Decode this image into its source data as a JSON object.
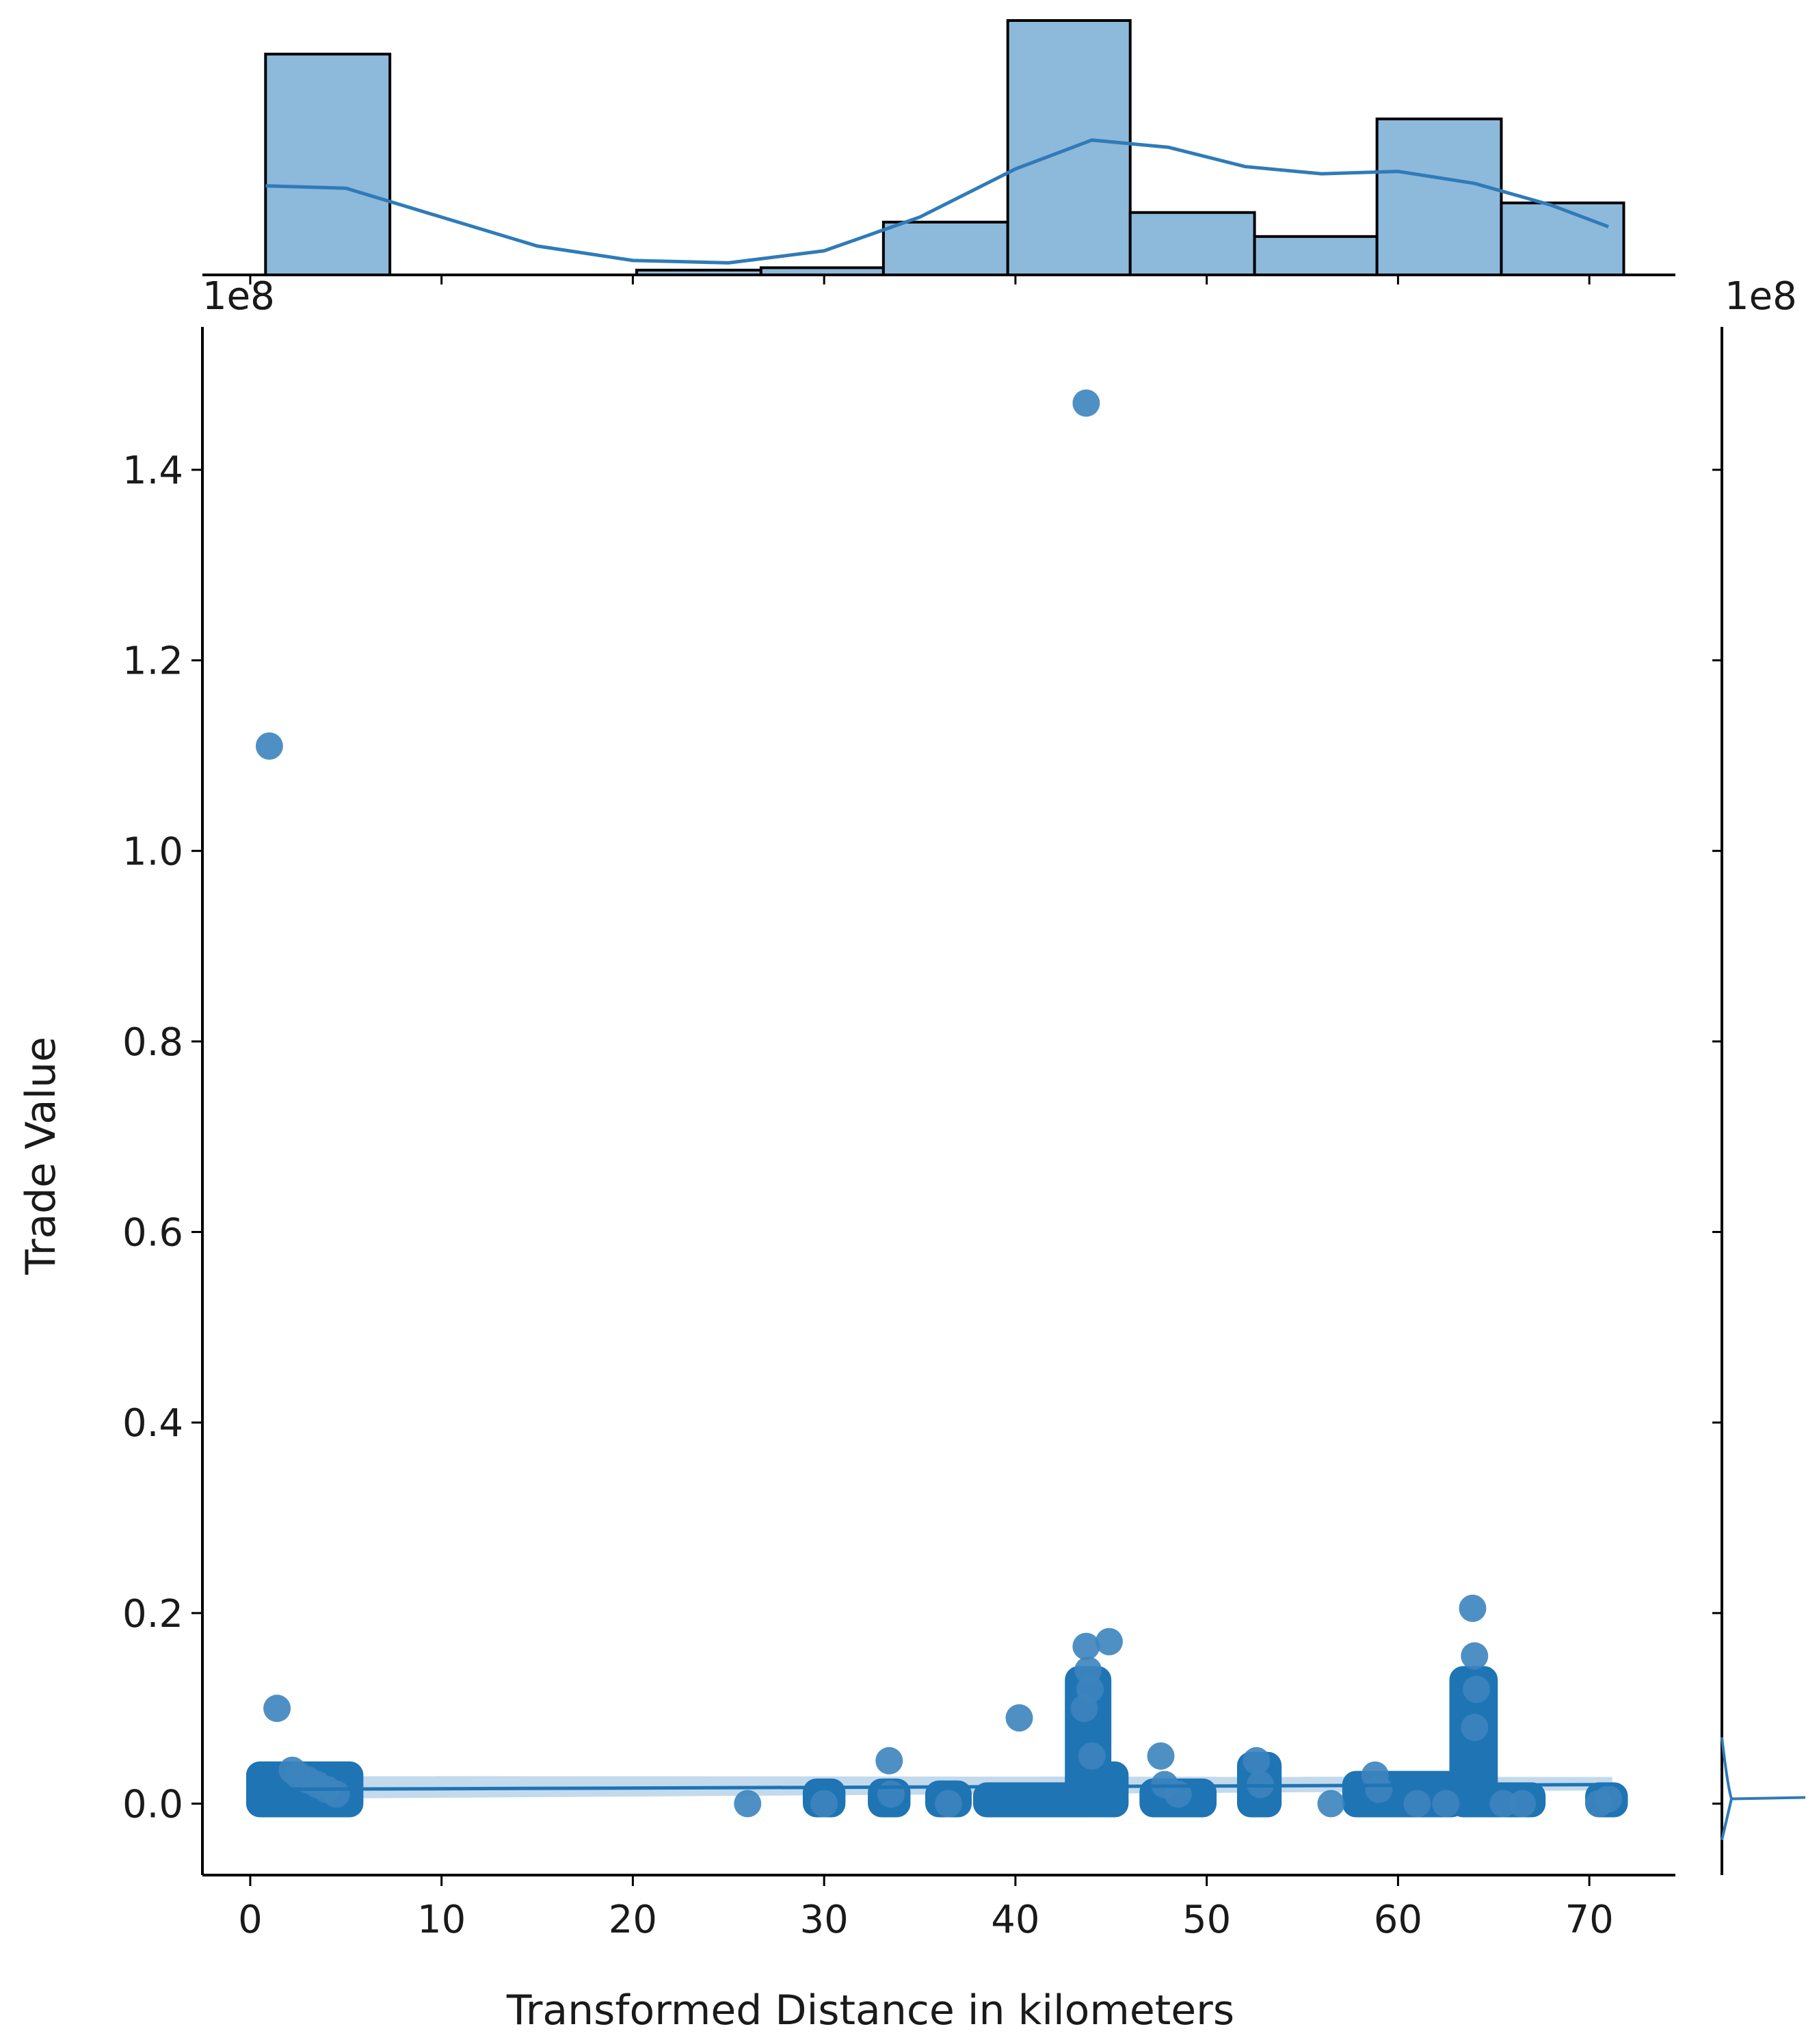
{
  "chart_data": {
    "type": "scatter",
    "subtype": "jointplot",
    "xlabel": "Transformed Distance in kilometers",
    "ylabel": "Trade Value",
    "x_ticks": [
      0,
      10,
      20,
      30,
      40,
      50,
      60,
      70
    ],
    "y_ticks": [
      0.0,
      0.2,
      0.4,
      0.6,
      0.8,
      1.0,
      1.2,
      1.4
    ],
    "y_tick_labels": [
      "0.0",
      "0.2",
      "0.4",
      "0.6",
      "0.8",
      "1.0",
      "1.2",
      "1.4"
    ],
    "y_offset_label": "1e8",
    "right_offset_label": "1e8",
    "top_offset_label": "1e8",
    "xlim": [
      -2.5,
      74.5
    ],
    "ylim": [
      -0.075,
      1.55
    ],
    "y_unit_multiplier": 100000000,
    "colors": {
      "point": "#3c84be",
      "point_dense": "#1f74b4",
      "hist_fill": "#8db9db",
      "hist_edge": "#000000",
      "kde": "#2f7bb8",
      "regression": "#1f74b4",
      "band": "#b9d3ea"
    },
    "series": [
      {
        "name": "points",
        "x": [
          1.0,
          1.4,
          2.2,
          2.5,
          3.0,
          3.5,
          4.0,
          4.5,
          26.0,
          30.0,
          33.4,
          33.5,
          36.5,
          40.2,
          43.7,
          43.7,
          43.8,
          43.9,
          44.9,
          43.6,
          44.0,
          47.6,
          47.8,
          48.5,
          52.6,
          52.8,
          58.8,
          59.0,
          63.9,
          64.0,
          64.1,
          64.0,
          65.5,
          66.5,
          71.0,
          56.5,
          61.0,
          62.5,
          70.5
        ],
        "y": [
          1.11,
          0.1,
          0.035,
          0.03,
          0.025,
          0.02,
          0.015,
          0.01,
          0.0,
          0.0,
          0.045,
          0.01,
          0.0,
          0.09,
          1.47,
          0.165,
          0.14,
          0.12,
          0.17,
          0.1,
          0.05,
          0.05,
          0.02,
          0.01,
          0.045,
          0.02,
          0.03,
          0.015,
          0.205,
          0.155,
          0.12,
          0.08,
          0.0,
          0.0,
          0.005,
          0.0,
          0.0,
          0.0,
          0.0
        ]
      }
    ],
    "dense_strips": [
      {
        "x0": 0.5,
        "x1": 5.2,
        "y0": 0.0,
        "y1": 0.03
      },
      {
        "x0": 29.6,
        "x1": 30.4,
        "y0": 0.0,
        "y1": 0.012
      },
      {
        "x0": 33.0,
        "x1": 33.8,
        "y0": 0.0,
        "y1": 0.012
      },
      {
        "x0": 36.0,
        "x1": 37.0,
        "y0": 0.0,
        "y1": 0.01
      },
      {
        "x0": 38.5,
        "x1": 43.2,
        "y0": 0.0,
        "y1": 0.008
      },
      {
        "x0": 43.3,
        "x1": 44.3,
        "y0": 0.0,
        "y1": 0.13
      },
      {
        "x0": 44.3,
        "x1": 45.2,
        "y0": 0.0,
        "y1": 0.03
      },
      {
        "x0": 47.2,
        "x1": 49.8,
        "y0": 0.0,
        "y1": 0.012
      },
      {
        "x0": 52.3,
        "x1": 53.2,
        "y0": 0.0,
        "y1": 0.04
      },
      {
        "x0": 57.8,
        "x1": 62.8,
        "y0": 0.0,
        "y1": 0.02
      },
      {
        "x0": 63.4,
        "x1": 64.5,
        "y0": 0.0,
        "y1": 0.13
      },
      {
        "x0": 64.5,
        "x1": 67.0,
        "y0": 0.0,
        "y1": 0.008
      },
      {
        "x0": 70.5,
        "x1": 71.3,
        "y0": 0.0,
        "y1": 0.008
      }
    ],
    "regression_line": {
      "x": [
        0.8,
        71.2
      ],
      "y": [
        0.015,
        0.02
      ]
    },
    "histogram_x": {
      "bins": [
        0.8,
        7.3,
        13.8,
        20.2,
        26.7,
        33.1,
        39.6,
        46.0,
        52.5,
        58.9,
        65.4,
        71.8
      ],
      "counts": [
        92,
        0,
        0,
        2,
        3,
        22,
        106,
        26,
        16,
        65,
        30
      ],
      "kde_x": [
        0.8,
        5,
        10,
        15,
        20,
        25,
        30,
        35,
        40,
        44,
        48,
        52,
        56,
        60,
        64,
        68,
        71.0
      ],
      "kde_y": [
        37,
        36,
        24,
        12,
        6,
        5,
        10,
        24,
        44,
        56,
        53,
        45,
        42,
        43,
        38,
        29,
        20
      ]
    },
    "marginal_y": {
      "peak_value": 0.005
    }
  }
}
